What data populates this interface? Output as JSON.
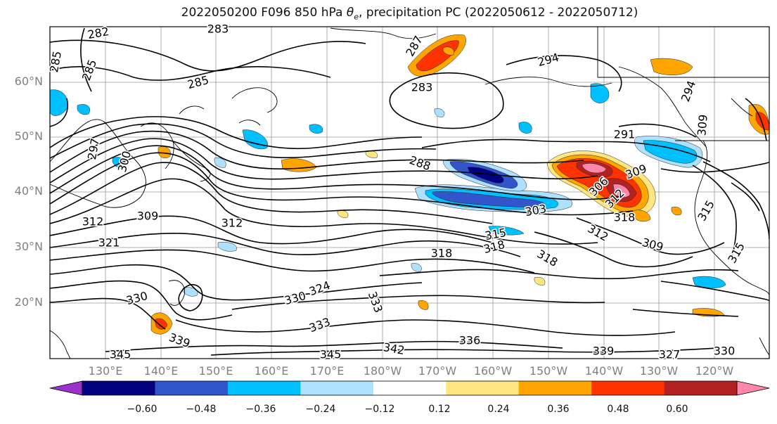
{
  "title": "2022050200 F096 850 hPa θe, precipitation PC (2022050612 - 2022050712)",
  "latitude_labels": [
    "60°N",
    "50°N",
    "40°N",
    "30°N",
    "20°N"
  ],
  "longitude_labels": [
    "130°E",
    "140°E",
    "150°E",
    "160°E",
    "170°E",
    "180°W",
    "170°W",
    "160°W",
    "150°W",
    "140°W",
    "130°W",
    "120°W"
  ],
  "contour_labels": [
    {
      "text": "282"
    },
    {
      "text": "285"
    },
    {
      "text": "285"
    },
    {
      "text": "285"
    },
    {
      "text": "283"
    },
    {
      "text": "283"
    },
    {
      "text": "294"
    },
    {
      "text": "294"
    },
    {
      "text": "287"
    },
    {
      "text": "291"
    },
    {
      "text": "288"
    },
    {
      "text": "297"
    },
    {
      "text": "300"
    },
    {
      "text": "309"
    },
    {
      "text": "303"
    },
    {
      "text": "309"
    },
    {
      "text": "306"
    },
    {
      "text": "312"
    },
    {
      "text": "318"
    },
    {
      "text": "312"
    },
    {
      "text": "309"
    },
    {
      "text": "312"
    },
    {
      "text": "315"
    },
    {
      "text": "315"
    },
    {
      "text": "318"
    },
    {
      "text": "318"
    },
    {
      "text": "309"
    },
    {
      "text": "312"
    },
    {
      "text": "321"
    },
    {
      "text": "330"
    },
    {
      "text": "324"
    },
    {
      "text": "330"
    },
    {
      "text": "333"
    },
    {
      "text": "333"
    },
    {
      "text": "339"
    },
    {
      "text": "345"
    },
    {
      "text": "345"
    },
    {
      "text": "342"
    },
    {
      "text": "336"
    },
    {
      "text": "339"
    },
    {
      "text": "327"
    },
    {
      "text": "330"
    },
    {
      "text": "315"
    },
    {
      "text": "318"
    }
  ],
  "colorbar": {
    "ticks": [
      "−0.60",
      "−0.48",
      "−0.36",
      "−0.24",
      "−0.12",
      "0.12",
      "0.24",
      "0.36",
      "0.48",
      "0.60"
    ],
    "colors": [
      "#9933cc",
      "#000080",
      "#3355cc",
      "#00bfff",
      "#aee0ff",
      "#ffffff",
      "#ffe680",
      "#ffa500",
      "#ff3300",
      "#b22222",
      "#ff88aa"
    ]
  },
  "shading_colors": {
    "light_blue": "#aee0ff",
    "cyan": "#00bfff",
    "blue": "#3355cc",
    "navy": "#000080",
    "yellow": "#ffe680",
    "orange": "#ffa500",
    "red": "#ff3300",
    "dark_red": "#b22222",
    "pink": "#ff88aa"
  }
}
